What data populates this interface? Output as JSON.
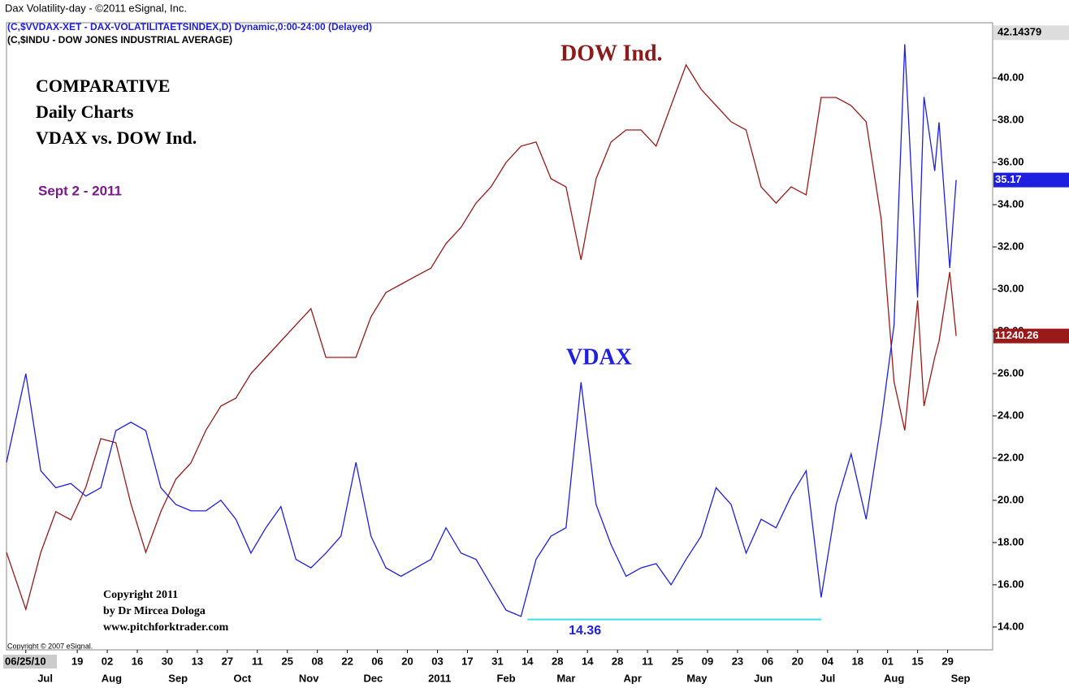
{
  "chart_data": {
    "type": "line",
    "title": "Dax Volatility-day - ©2011 eSignal, Inc.",
    "subtitles": [
      "(C,$VVDAX-XET - DAX-VOLATILITAETSINDEX,D) Dynamic,0:00-24:00 (Delayed)",
      "(C,$INDU - DOW JONES INDUSTRIAL AVERAGE)"
    ],
    "x": [
      "2010-06-16",
      "2010-06-25",
      "2010-07-02",
      "2010-07-09",
      "2010-07-16",
      "2010-07-23",
      "2010-07-30",
      "2010-08-06",
      "2010-08-13",
      "2010-08-20",
      "2010-08-27",
      "2010-09-03",
      "2010-09-10",
      "2010-09-17",
      "2010-09-24",
      "2010-10-01",
      "2010-10-08",
      "2010-10-15",
      "2010-10-22",
      "2010-10-29",
      "2010-11-05",
      "2010-11-12",
      "2010-11-19",
      "2010-11-26",
      "2010-12-03",
      "2010-12-10",
      "2010-12-17",
      "2010-12-24",
      "2010-12-31",
      "2011-01-07",
      "2011-01-14",
      "2011-01-21",
      "2011-01-28",
      "2011-02-04",
      "2011-02-11",
      "2011-02-18",
      "2011-02-25",
      "2011-03-04",
      "2011-03-11",
      "2011-03-18",
      "2011-03-25",
      "2011-04-01",
      "2011-04-08",
      "2011-04-15",
      "2011-04-22",
      "2011-04-29",
      "2011-05-06",
      "2011-05-13",
      "2011-05-20",
      "2011-05-27",
      "2011-06-03",
      "2011-06-10",
      "2011-06-17",
      "2011-06-24",
      "2011-07-01",
      "2011-07-08",
      "2011-07-15",
      "2011-07-22",
      "2011-07-29",
      "2011-08-04",
      "2011-08-09",
      "2011-08-15",
      "2011-08-18",
      "2011-08-23",
      "2011-08-25",
      "2011-08-30",
      "2011-09-02"
    ],
    "series": [
      {
        "name": "VDAX",
        "color": "#1f1fe0",
        "axis": "y",
        "values": [
          21.8,
          26.0,
          21.4,
          20.6,
          20.8,
          20.2,
          20.6,
          23.3,
          23.7,
          23.3,
          20.6,
          19.8,
          19.5,
          19.5,
          20.0,
          19.1,
          17.5,
          18.7,
          19.7,
          17.2,
          16.8,
          17.5,
          18.3,
          21.8,
          18.3,
          16.8,
          16.4,
          16.8,
          17.2,
          18.7,
          17.5,
          17.2,
          16.0,
          14.8,
          14.5,
          17.2,
          18.3,
          18.7,
          25.6,
          19.8,
          17.9,
          16.4,
          16.8,
          17.0,
          16.0,
          17.2,
          18.3,
          20.6,
          19.8,
          17.5,
          19.1,
          18.7,
          20.2,
          21.4,
          15.4,
          19.8,
          22.2,
          19.1,
          23.7,
          28.3,
          41.6,
          29.6,
          39.1,
          35.6,
          37.9,
          31.0,
          35.17
        ],
        "last_label": "35.17"
      },
      {
        "name": "DOW Ind.",
        "color": "#9a1a1a",
        "axis": "y2",
        "values": [
          10023,
          9703,
          10023,
          10252,
          10206,
          10389,
          10663,
          10640,
          10297,
          10023,
          10252,
          10435,
          10526,
          10709,
          10846,
          10891,
          11029,
          11120,
          11211,
          11303,
          11394,
          11120,
          11120,
          11120,
          11348,
          11485,
          11531,
          11577,
          11622,
          11760,
          11851,
          11988,
          12079,
          12216,
          12308,
          12331,
          12125,
          12079,
          11668,
          12125,
          12331,
          12399,
          12399,
          12308,
          12536,
          12765,
          12628,
          12536,
          12445,
          12399,
          12079,
          11988,
          12079,
          12034,
          12582,
          12582,
          12536,
          12445,
          11897,
          10983,
          10709,
          11440,
          10846,
          11120,
          11211,
          11600,
          11240.26
        ],
        "last_label": "11240.26"
      }
    ],
    "xlim": [
      "2010-06-16",
      "2011-09-19"
    ],
    "xticks": [
      {
        "value": "2010-06-25",
        "label": "06/25/10"
      },
      {
        "value": "2010-07-19",
        "label": "19"
      },
      {
        "value": "2010-08-02",
        "label": "02"
      },
      {
        "value": "2010-08-16",
        "label": "16"
      },
      {
        "value": "2010-08-30",
        "label": "30"
      },
      {
        "value": "2010-09-13",
        "label": "13"
      },
      {
        "value": "2010-09-27",
        "label": "27"
      },
      {
        "value": "2010-10-11",
        "label": "11"
      },
      {
        "value": "2010-10-25",
        "label": "25"
      },
      {
        "value": "2010-11-08",
        "label": "08"
      },
      {
        "value": "2010-11-22",
        "label": "22"
      },
      {
        "value": "2010-12-06",
        "label": "06"
      },
      {
        "value": "2010-12-20",
        "label": "20"
      },
      {
        "value": "2011-01-03",
        "label": "03"
      },
      {
        "value": "2011-01-17",
        "label": "17"
      },
      {
        "value": "2011-01-31",
        "label": "31"
      },
      {
        "value": "2011-02-14",
        "label": "14"
      },
      {
        "value": "2011-02-28",
        "label": "28"
      },
      {
        "value": "2011-03-14",
        "label": "14"
      },
      {
        "value": "2011-03-28",
        "label": "28"
      },
      {
        "value": "2011-04-11",
        "label": "11"
      },
      {
        "value": "2011-04-25",
        "label": "25"
      },
      {
        "value": "2011-05-09",
        "label": "09"
      },
      {
        "value": "2011-05-23",
        "label": "23"
      },
      {
        "value": "2011-06-06",
        "label": "06"
      },
      {
        "value": "2011-06-20",
        "label": "20"
      },
      {
        "value": "2011-07-04",
        "label": "04"
      },
      {
        "value": "2011-07-18",
        "label": "18"
      },
      {
        "value": "2011-08-01",
        "label": "01"
      },
      {
        "value": "2011-08-15",
        "label": "15"
      },
      {
        "value": "2011-08-29",
        "label": "29"
      }
    ],
    "month_labels": [
      {
        "value": "2010-07-01",
        "label": "Jul"
      },
      {
        "value": "2010-08-01",
        "label": "Aug"
      },
      {
        "value": "2010-09-01",
        "label": "Sep"
      },
      {
        "value": "2010-10-01",
        "label": "Oct"
      },
      {
        "value": "2010-11-01",
        "label": "Nov"
      },
      {
        "value": "2010-12-01",
        "label": "Dec"
      },
      {
        "value": "2011-01-01",
        "label": "2011"
      },
      {
        "value": "2011-02-01",
        "label": "Feb"
      },
      {
        "value": "2011-03-01",
        "label": "Mar"
      },
      {
        "value": "2011-04-01",
        "label": "Apr"
      },
      {
        "value": "2011-05-01",
        "label": "May"
      },
      {
        "value": "2011-06-01",
        "label": "Jun"
      },
      {
        "value": "2011-07-01",
        "label": "Jul"
      },
      {
        "value": "2011-08-01",
        "label": "Aug"
      },
      {
        "value": "2011-09-01",
        "label": "Sep"
      }
    ],
    "ylim": [
      12.92,
      42.54
    ],
    "yticks": [
      {
        "value": 14,
        "label": "14.00"
      },
      {
        "value": 16,
        "label": "16.00"
      },
      {
        "value": 18,
        "label": "18.00"
      },
      {
        "value": 20,
        "label": "20.00"
      },
      {
        "value": 22,
        "label": "22.00"
      },
      {
        "value": 24,
        "label": "24.00"
      },
      {
        "value": 26,
        "label": "26.00"
      },
      {
        "value": 28,
        "label": "28.00"
      },
      {
        "value": 30,
        "label": "30.00"
      },
      {
        "value": 32,
        "label": "32.00"
      },
      {
        "value": 34,
        "label": "34.00"
      },
      {
        "value": 36,
        "label": "36.00"
      },
      {
        "value": 38,
        "label": "38.00"
      },
      {
        "value": 40,
        "label": "40.00"
      }
    ],
    "y2lim": [
      9475,
      12993
    ],
    "axis_top_value": 42.14379,
    "support": {
      "value": 14.36,
      "x": [
        "2011-02-14",
        "2011-07-01"
      ],
      "color": "#33e0f0"
    },
    "annotations": {
      "dow": "DOW Ind.",
      "vdax": "VDAX",
      "comparative": [
        "COMPARATIVE",
        "Daily Charts",
        "VDAX vs. DOW Ind."
      ],
      "date": "Sept 2 - 2011",
      "credit": [
        "Copyright 2011",
        "by Dr Mircea Dologa",
        "www.pitchforktrader.com"
      ],
      "esignal": "Copyright © 2007 eSignal."
    },
    "grid": false
  }
}
